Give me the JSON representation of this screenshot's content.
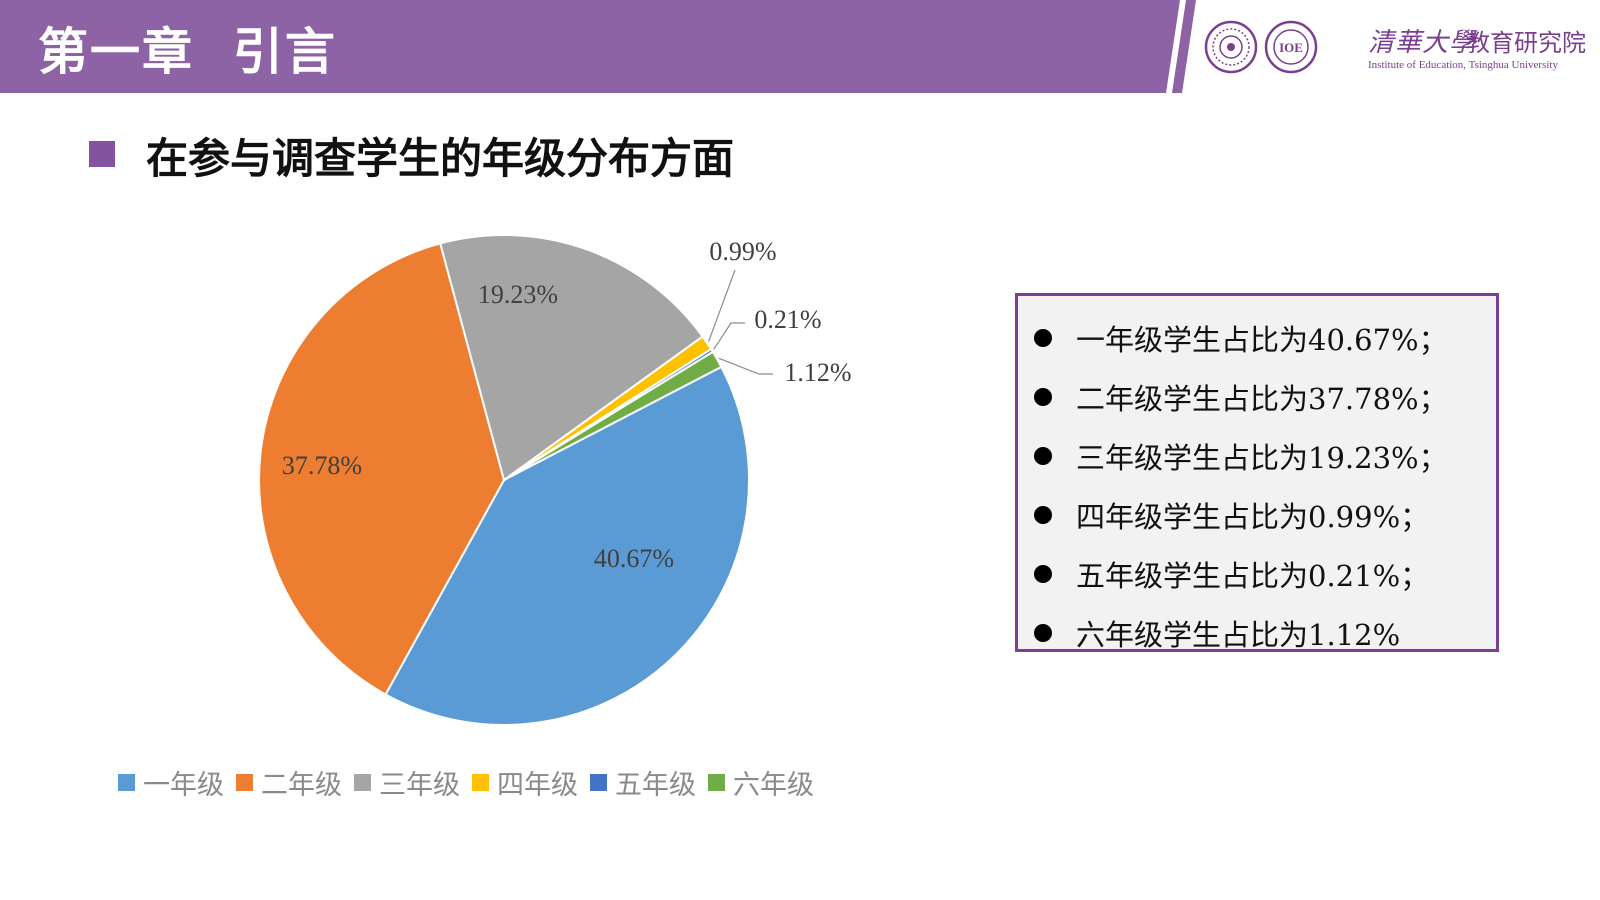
{
  "header": {
    "chapter_title": "第一章  引言",
    "university_name": "清華大學",
    "institute_name": "教育研究院",
    "institute_en": "Institute of Education, Tsinghua University",
    "seal_text": "IOE",
    "accent_color": "#8e63a5"
  },
  "heading": "在参与调查学生的年级分布方面",
  "chart_data": {
    "type": "pie",
    "categories": [
      "一年级",
      "二年级",
      "三年级",
      "四年级",
      "五年级",
      "六年级"
    ],
    "values": [
      40.67,
      37.78,
      19.23,
      0.99,
      0.21,
      1.12
    ],
    "labels": [
      "40.67%",
      "37.78%",
      "19.23%",
      "0.99%",
      "0.21%",
      "1.12%"
    ],
    "colors": [
      "#5b9bd5",
      "#ed7d31",
      "#a5a5a5",
      "#ffc000",
      "#4472c4",
      "#70ad47"
    ],
    "legend_position": "bottom"
  },
  "summary": {
    "lines": [
      "一年级学生占比为40.67%；",
      "二年级学生占比为37.78%；",
      "三年级学生占比为19.23%；",
      "四年级学生占比为0.99%；",
      "五年级学生占比为0.21%；",
      "六年级学生占比为1.12%"
    ],
    "border_color": "#7d3f95"
  }
}
